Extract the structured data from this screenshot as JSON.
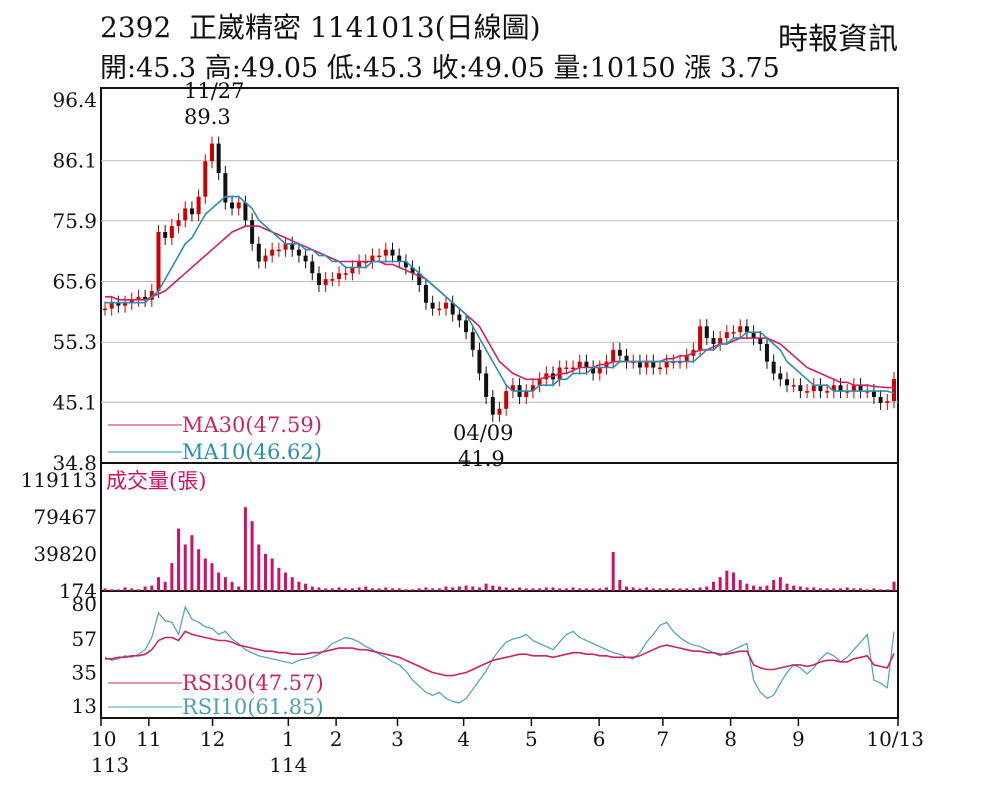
{
  "header": {
    "title": "2392  正崴精密 1141013(日線圖)",
    "stats": "開:45.3 高:49.05 低:45.3 收:49.05 量:10150 漲 3.75",
    "source": "時報資訊"
  },
  "colors": {
    "ma30": "#cc2266",
    "ma10": "#2a8fb0",
    "candle_up": "#cc0000",
    "candle_down": "#111111",
    "volume": "#cc1166",
    "rsi30": "#cc2266",
    "rsi10": "#4a9fbf"
  },
  "chart_data": [
    {
      "type": "candlestick",
      "ylim": [
        34.8,
        96.4
      ],
      "y_ticks": [
        "96.4",
        "86.1",
        "75.9",
        "65.6",
        "55.3",
        "45.1",
        "34.8"
      ],
      "legend": [
        {
          "label": "MA30(47.59)",
          "color": "#cc2266"
        },
        {
          "label": "MA10(46.62)",
          "color": "#2a8fb0"
        }
      ],
      "annotations": [
        {
          "date": "11/27",
          "value": "89.3"
        },
        {
          "date": "04/09",
          "value": "41.9"
        }
      ],
      "close_series": [
        61,
        62,
        61.5,
        62,
        62.5,
        63,
        62.5,
        64,
        74,
        73,
        75,
        76,
        78,
        77,
        80,
        86,
        89,
        84,
        79,
        78,
        79,
        76,
        72,
        69,
        70,
        71,
        71,
        72,
        71,
        70,
        69,
        67,
        65,
        66,
        66,
        67,
        67,
        68,
        69,
        69,
        70,
        70,
        71,
        70,
        69,
        68,
        67,
        65,
        62,
        61,
        61,
        62,
        60,
        59,
        57,
        54,
        50,
        46,
        43,
        44,
        47,
        48,
        46,
        47,
        48,
        49,
        50,
        49,
        51,
        51,
        51,
        52,
        51,
        50,
        51,
        52,
        54,
        53,
        52,
        52,
        51,
        52,
        51,
        51,
        52,
        52,
        52,
        53,
        54,
        58,
        56,
        55,
        56,
        57,
        57,
        58,
        57,
        56,
        55,
        52,
        50,
        49,
        48,
        48,
        47,
        47,
        48,
        47,
        47,
        48,
        47,
        47,
        48,
        47,
        47,
        46,
        45,
        45.3,
        49.05
      ],
      "ma10_series": [
        62,
        62,
        62,
        62,
        62,
        62,
        62,
        63,
        64,
        66,
        68,
        70,
        72,
        73,
        75,
        77,
        78,
        79,
        80,
        80,
        80,
        79,
        78,
        76,
        75,
        74,
        73,
        72,
        72,
        72,
        71,
        71,
        70,
        70,
        69,
        69,
        68,
        68,
        68,
        68,
        69,
        69,
        69,
        69,
        69,
        69,
        68,
        67,
        66,
        65,
        64,
        63,
        62,
        61,
        60,
        58,
        56,
        54,
        52,
        50,
        48,
        47,
        47,
        47,
        47,
        48,
        48,
        48,
        49,
        49,
        50,
        50,
        50,
        51,
        51,
        51,
        51,
        52,
        52,
        52,
        52,
        52,
        52,
        52,
        52,
        52,
        52,
        52,
        52,
        53,
        54,
        54,
        55,
        55,
        56,
        56,
        57,
        57,
        57,
        56,
        55,
        54,
        52,
        51,
        50,
        49,
        48,
        48,
        48,
        47,
        47,
        47,
        47,
        47,
        47,
        47,
        47,
        47,
        46.62
      ],
      "ma30_series": [
        63,
        63,
        62.5,
        62.5,
        62.5,
        62.5,
        62.5,
        63,
        63.5,
        64,
        65,
        66,
        67,
        68,
        69,
        70,
        71,
        72,
        73,
        74,
        74.5,
        75,
        75,
        75,
        74.5,
        74,
        73.5,
        73,
        72.5,
        72,
        71.5,
        71,
        70.5,
        70,
        69.5,
        69,
        69,
        69,
        69,
        69,
        69,
        69,
        68.5,
        68.5,
        68,
        67.5,
        67,
        66.5,
        66,
        65,
        64,
        63,
        62,
        61,
        60,
        59,
        58,
        56,
        54,
        52,
        51,
        50,
        49.5,
        49,
        49,
        49,
        49.5,
        49.5,
        50,
        50,
        50.5,
        51,
        51,
        51,
        51.5,
        51.5,
        52,
        52,
        52,
        52,
        52,
        52,
        52,
        52,
        52.5,
        52.5,
        53,
        53,
        53.5,
        54,
        54,
        54.5,
        55,
        55,
        55.5,
        56,
        56,
        56,
        56,
        56,
        55.5,
        55,
        54,
        53,
        52,
        51,
        50.5,
        50,
        49.5,
        49,
        48.5,
        48.5,
        48,
        48,
        48,
        47.8,
        47.7,
        47.6,
        47.59
      ]
    },
    {
      "type": "bar",
      "title": "成交量(張)",
      "y_ticks": [
        "119113",
        "79467",
        "39820",
        "174"
      ],
      "ylim": [
        174,
        119113
      ],
      "values": [
        3000,
        2000,
        2000,
        4000,
        3000,
        2000,
        5000,
        6000,
        15000,
        10000,
        30000,
        67000,
        50000,
        60000,
        45000,
        35000,
        30000,
        20000,
        15000,
        10000,
        5000,
        90000,
        75000,
        50000,
        40000,
        35000,
        25000,
        20000,
        15000,
        10000,
        8000,
        5000,
        4000,
        3000,
        3000,
        4000,
        3000,
        3000,
        4000,
        5000,
        3000,
        3000,
        4000,
        3000,
        3000,
        2000,
        2000,
        3000,
        4000,
        3000,
        3000,
        5000,
        4000,
        5000,
        6000,
        5000,
        4000,
        8000,
        6000,
        5000,
        4000,
        3000,
        4000,
        3000,
        3000,
        3000,
        4000,
        4000,
        3000,
        3000,
        4000,
        3000,
        3000,
        3000,
        3000,
        4000,
        42000,
        12000,
        5000,
        4000,
        3000,
        4000,
        3000,
        3000,
        3000,
        3000,
        3000,
        3000,
        3000,
        4000,
        5000,
        10000,
        15000,
        22000,
        20000,
        12000,
        8000,
        6000,
        5000,
        6000,
        12000,
        15000,
        8000,
        6000,
        5000,
        4000,
        4000,
        3000,
        3000,
        3000,
        3000,
        4000,
        3000,
        3000,
        2000,
        3000,
        2000,
        2000,
        10150
      ]
    },
    {
      "type": "line",
      "y_ticks": [
        "80",
        "57",
        "35",
        "13"
      ],
      "ylim": [
        13,
        80
      ],
      "legend": [
        {
          "label": "RSI30(47.57)",
          "color": "#cc2266"
        },
        {
          "label": "RSI10(61.85)",
          "color": "#4a9fbf"
        }
      ],
      "x_tick_labels": [
        "10",
        "11",
        "12",
        "1",
        "2",
        "3",
        "4",
        "5",
        "6",
        "7",
        "8",
        "9",
        "10/13"
      ],
      "x_year_labels": [
        "113",
        "114"
      ],
      "rsi10_series": [
        45,
        43,
        44,
        46,
        45,
        47,
        50,
        58,
        74,
        69,
        68,
        60,
        78,
        70,
        68,
        65,
        64,
        60,
        62,
        57,
        54,
        50,
        48,
        46,
        45,
        44,
        43,
        42,
        41,
        43,
        44,
        45,
        47,
        50,
        54,
        56,
        58,
        57,
        55,
        52,
        50,
        47,
        45,
        42,
        40,
        36,
        30,
        26,
        22,
        20,
        22,
        18,
        16,
        15,
        18,
        24,
        30,
        36,
        44,
        50,
        55,
        57,
        58,
        60,
        56,
        54,
        52,
        50,
        55,
        60,
        62,
        58,
        56,
        54,
        52,
        50,
        48,
        47,
        45,
        44,
        48,
        55,
        60,
        66,
        68,
        62,
        58,
        55,
        53,
        52,
        50,
        48,
        46,
        48,
        50,
        52,
        54,
        30,
        22,
        18,
        20,
        28,
        35,
        40,
        38,
        34,
        38,
        44,
        48,
        46,
        42,
        45,
        50,
        55,
        60,
        30,
        28,
        25,
        61.85
      ],
      "rsi30_series": [
        44,
        44,
        45,
        45,
        46,
        46,
        47,
        50,
        56,
        58,
        58,
        56,
        62,
        60,
        59,
        58,
        57,
        56,
        56,
        55,
        53,
        52,
        51,
        50,
        49,
        49,
        48,
        48,
        47,
        47,
        47,
        48,
        48,
        49,
        50,
        51,
        51,
        51,
        50,
        50,
        49,
        48,
        47,
        46,
        45,
        43,
        41,
        39,
        37,
        35,
        34,
        33,
        33,
        34,
        35,
        37,
        39,
        41,
        43,
        44,
        45,
        46,
        47,
        47,
        46,
        46,
        46,
        45,
        46,
        47,
        48,
        48,
        47,
        47,
        46,
        46,
        45,
        45,
        45,
        45,
        46,
        48,
        50,
        52,
        53,
        52,
        51,
        50,
        49,
        49,
        48,
        48,
        47,
        47,
        48,
        49,
        49,
        40,
        38,
        37,
        37,
        38,
        39,
        40,
        40,
        39,
        40,
        42,
        43,
        43,
        42,
        42,
        44,
        45,
        46,
        40,
        39,
        38,
        47.57
      ]
    }
  ]
}
